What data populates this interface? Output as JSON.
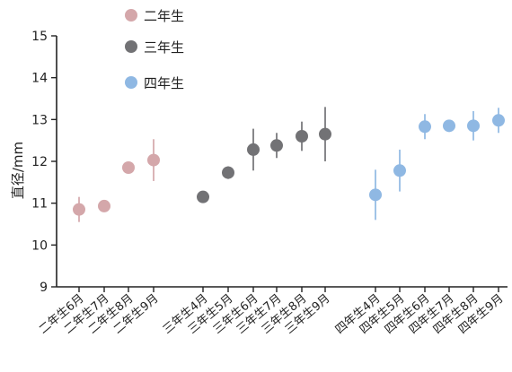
{
  "chart_data": {
    "type": "scatter",
    "title": "",
    "xlabel": "",
    "ylabel": "直径/mm",
    "ylim": [
      9,
      15
    ],
    "yticks": [
      9,
      10,
      11,
      12,
      13,
      14,
      15
    ],
    "grid": false,
    "legend_position": "top-left",
    "error_bars": true,
    "series": [
      {
        "name": "二年生",
        "color": "#d4a7aa",
        "categories": [
          "二年生6月",
          "二年生7月",
          "二年生8月",
          "二年生9月"
        ],
        "values": [
          10.85,
          10.93,
          11.85,
          12.03
        ],
        "errors": [
          0.3,
          0.12,
          0.12,
          0.5
        ]
      },
      {
        "name": "三年生",
        "color": "#727275",
        "categories": [
          "三年生4月",
          "三年生5月",
          "三年生6月",
          "三年生7月",
          "三年生8月",
          "三年生9月"
        ],
        "values": [
          11.15,
          11.73,
          12.28,
          12.38,
          12.6,
          12.65
        ],
        "errors": [
          0.1,
          0.15,
          0.5,
          0.3,
          0.35,
          0.65
        ]
      },
      {
        "name": "四年生",
        "color": "#8fb8e3",
        "categories": [
          "四年生4月",
          "四年生5月",
          "四年生6月",
          "四年生7月",
          "四年生8月",
          "四年生9月"
        ],
        "values": [
          11.2,
          11.78,
          12.83,
          12.85,
          12.85,
          12.98
        ],
        "errors": [
          0.6,
          0.5,
          0.3,
          0.1,
          0.35,
          0.3
        ]
      }
    ]
  }
}
